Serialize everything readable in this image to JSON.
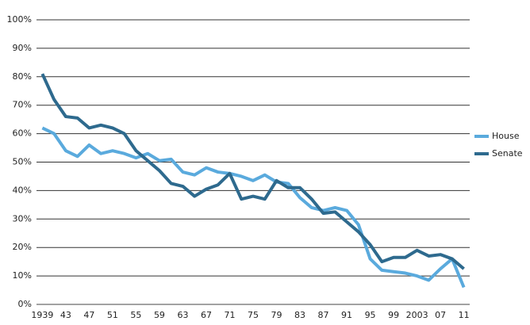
{
  "chart_data": {
    "type": "line",
    "categories": [
      "1939",
      null,
      "43",
      null,
      "47",
      null,
      "51",
      null,
      "55",
      null,
      "59",
      null,
      "63",
      null,
      "67",
      null,
      "71",
      null,
      "75",
      null,
      "79",
      null,
      "83",
      null,
      "87",
      null,
      "91",
      null,
      "95",
      null,
      "99",
      null,
      "2003",
      null,
      "07",
      null,
      "11"
    ],
    "series": [
      {
        "name": "House",
        "color": "#5aaadd",
        "values": [
          62,
          60,
          54,
          52,
          56,
          53,
          54,
          53,
          51.5,
          53,
          50.5,
          51,
          46.5,
          45.5,
          48,
          46.5,
          46,
          45,
          43.5,
          45.5,
          43,
          42.5,
          37.5,
          34,
          33,
          34,
          33,
          28,
          16,
          12,
          11.5,
          11,
          10,
          8.5,
          12.5,
          16,
          6
        ]
      },
      {
        "name": "Senate",
        "color": "#2e6a8e",
        "values": [
          81,
          72,
          66,
          65.5,
          62,
          63,
          62,
          60,
          54,
          50.5,
          47,
          42.5,
          41.5,
          38,
          40.5,
          42,
          46,
          37,
          38,
          37,
          43.5,
          41,
          41,
          37,
          32,
          32.5,
          29,
          25.5,
          21,
          15,
          16.5,
          16.5,
          19,
          17,
          17.5,
          16,
          12.5
        ]
      }
    ],
    "ylim": [
      0,
      100
    ],
    "yticks": [
      {
        "value": 0,
        "label": "0%"
      },
      {
        "value": 10,
        "label": "10%"
      },
      {
        "value": 20,
        "label": "20%"
      },
      {
        "value": 30,
        "label": "30%"
      },
      {
        "value": 40,
        "label": "40%"
      },
      {
        "value": 50,
        "label": "50%"
      },
      {
        "value": 60,
        "label": "60%"
      },
      {
        "value": 70,
        "label": "70%"
      },
      {
        "value": 80,
        "label": "80%"
      },
      {
        "value": 90,
        "label": "90%"
      },
      {
        "value": 100,
        "label": "100%"
      }
    ],
    "grid": true,
    "legend": "right"
  }
}
